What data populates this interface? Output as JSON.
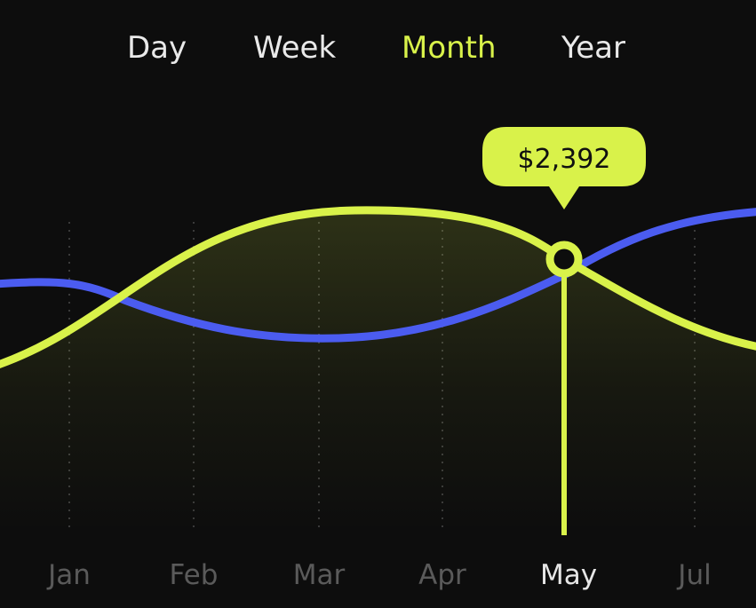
{
  "tabs": {
    "items": [
      "Day",
      "Week",
      "Month",
      "Year"
    ],
    "active": "Month"
  },
  "colors": {
    "background": "#0d0d0d",
    "accent": "#d9f24a",
    "series_blue": "#4b5cf0",
    "label_muted": "#5a5a5a",
    "label_active": "#e6e6e6"
  },
  "chart_data": {
    "type": "line",
    "categories": [
      "Jan",
      "Feb",
      "Mar",
      "Apr",
      "May",
      "Jul"
    ],
    "active_category": "May",
    "tooltip": {
      "category": "May",
      "label": "$2,392"
    },
    "grid": "vertical dotted lines at each category",
    "area_fill_under": "green series"
  }
}
